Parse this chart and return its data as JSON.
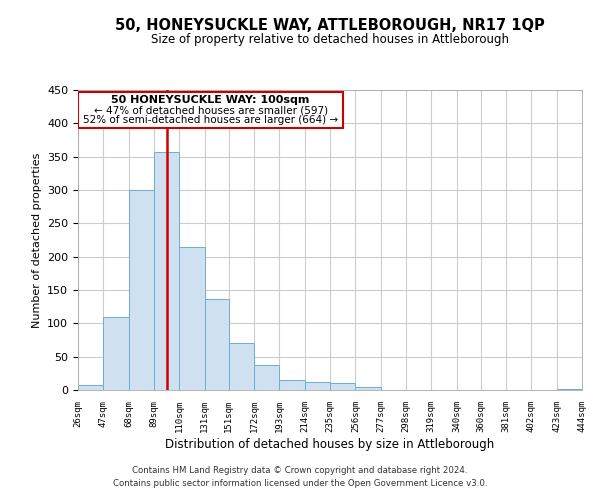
{
  "title": "50, HONEYSUCKLE WAY, ATTLEBOROUGH, NR17 1QP",
  "subtitle": "Size of property relative to detached houses in Attleborough",
  "xlabel": "Distribution of detached houses by size in Attleborough",
  "ylabel": "Number of detached properties",
  "bar_color": "#cfe0f0",
  "bar_edge_color": "#6baed6",
  "vline_x": 100,
  "vline_color": "#cc0000",
  "bins": [
    26,
    47,
    68,
    89,
    110,
    131,
    151,
    172,
    193,
    214,
    235,
    256,
    277,
    298,
    319,
    340,
    360,
    381,
    402,
    423,
    444
  ],
  "counts": [
    8,
    110,
    300,
    357,
    215,
    137,
    70,
    38,
    15,
    12,
    10,
    5,
    0,
    0,
    0,
    0,
    0,
    0,
    0,
    2
  ],
  "ylim": [
    0,
    450
  ],
  "yticks": [
    0,
    50,
    100,
    150,
    200,
    250,
    300,
    350,
    400,
    450
  ],
  "annotation_title": "50 HONEYSUCKLE WAY: 100sqm",
  "annotation_line1": "← 47% of detached houses are smaller (597)",
  "annotation_line2": "52% of semi-detached houses are larger (664) →",
  "annotation_box_color": "#ffffff",
  "annotation_box_edge": "#cc0000",
  "footer_line1": "Contains HM Land Registry data © Crown copyright and database right 2024.",
  "footer_line2": "Contains public sector information licensed under the Open Government Licence v3.0.",
  "background_color": "#ffffff",
  "grid_color": "#cccccc"
}
